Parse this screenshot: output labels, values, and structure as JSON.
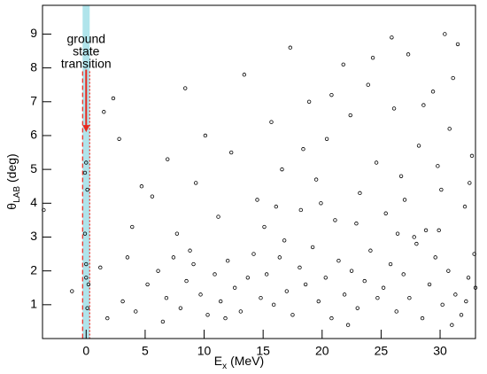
{
  "chart_data": {
    "type": "scatter",
    "x_label": {
      "symbol": "E",
      "subscript": "x",
      "unit": "(MeV)"
    },
    "y_label": {
      "symbol": "θ",
      "subscript": "LAB",
      "unit": "(deg)"
    },
    "xlim": [
      -3.7,
      33
    ],
    "ylim": [
      0,
      9.85
    ],
    "xticks": [
      0,
      5,
      10,
      15,
      20,
      25,
      30
    ],
    "yticks": [
      1,
      2,
      3,
      4,
      5,
      6,
      7,
      8,
      9
    ],
    "color": "#000000",
    "annotation": {
      "lines": [
        "ground",
        "state",
        "transition"
      ],
      "color": "#e8281e",
      "x": 0,
      "band": [
        -0.3,
        0.3
      ],
      "band_color": "#8fd8e2",
      "arrow": [
        7.95,
        6.1
      ]
    },
    "x": [
      -3.6,
      -1.2,
      0.0,
      0.1,
      -0.1,
      0.0,
      0.2,
      0.1,
      0.0,
      -0.1,
      1.5,
      1.2,
      2.3,
      3.1,
      2.8,
      3.9,
      4.2,
      1.8,
      3.5,
      4.7,
      5.2,
      6.1,
      6.8,
      7.4,
      8.0,
      8.5,
      9.1,
      9.7,
      10.3,
      10.9,
      11.4,
      12.0,
      12.6,
      13.1,
      13.7,
      14.2,
      14.8,
      6.5,
      8.8,
      11.8,
      15.3,
      15.9,
      16.4,
      17.0,
      17.5,
      18.1,
      18.6,
      19.2,
      19.7,
      20.3,
      20.8,
      21.4,
      21.9,
      22.5,
      23.0,
      23.6,
      24.1,
      24.7,
      16.8,
      22.2,
      25.2,
      25.8,
      26.3,
      26.9,
      27.4,
      28.0,
      28.5,
      29.1,
      29.6,
      30.2,
      30.7,
      31.3,
      31.8,
      32.4,
      32.9,
      31.0,
      32.2,
      33.0,
      27.8,
      29.9,
      5.6,
      6.9,
      7.7,
      8.4,
      9.3,
      10.1,
      11.2,
      12.3,
      13.4,
      14.5,
      15.1,
      15.7,
      16.6,
      17.3,
      18.2,
      18.9,
      19.5,
      20.4,
      21.1,
      21.8,
      22.4,
      23.2,
      23.9,
      24.6,
      16.1,
      19.9,
      22.9,
      18.4,
      24.3,
      20.8,
      25.4,
      26.1,
      26.7,
      27.3,
      28.2,
      28.8,
      29.4,
      30.1,
      30.8,
      31.5,
      32.1,
      32.7,
      25.9,
      27.0,
      28.6,
      29.8,
      31.1,
      32.5,
      26.4,
      30.4
    ],
    "values": [
      3.8,
      1.4,
      5.2,
      4.4,
      3.1,
      2.2,
      1.6,
      0.9,
      1.8,
      4.9,
      6.7,
      2.1,
      7.1,
      1.1,
      5.9,
      3.3,
      0.8,
      0.6,
      2.4,
      4.5,
      1.6,
      2.0,
      1.2,
      2.4,
      0.9,
      1.7,
      2.2,
      1.3,
      0.7,
      1.9,
      1.1,
      2.3,
      1.5,
      0.8,
      1.8,
      2.5,
      1.2,
      0.5,
      2.6,
      0.6,
      1.9,
      1.0,
      2.4,
      1.4,
      0.7,
      2.1,
      1.6,
      2.7,
      1.1,
      1.8,
      0.6,
      2.3,
      1.3,
      2.0,
      0.9,
      1.7,
      2.6,
      1.2,
      2.9,
      0.4,
      1.5,
      2.2,
      0.8,
      1.9,
      1.2,
      2.8,
      0.6,
      1.6,
      2.4,
      1.0,
      2.0,
      1.3,
      0.7,
      1.8,
      2.5,
      0.4,
      1.1,
      1.5,
      3.0,
      3.2,
      4.2,
      5.3,
      3.1,
      7.4,
      4.6,
      6.0,
      3.6,
      5.5,
      7.8,
      4.1,
      3.3,
      6.4,
      5.0,
      8.6,
      3.8,
      7.0,
      4.7,
      5.9,
      3.5,
      8.1,
      6.6,
      4.3,
      7.5,
      5.2,
      3.9,
      4.0,
      3.4,
      5.6,
      8.3,
      7.2,
      3.7,
      6.8,
      4.8,
      8.4,
      5.7,
      3.2,
      7.3,
      4.4,
      6.2,
      8.7,
      3.9,
      5.4,
      8.9,
      4.1,
      6.9,
      5.1,
      7.7,
      4.6,
      3.1,
      9.0
    ]
  }
}
